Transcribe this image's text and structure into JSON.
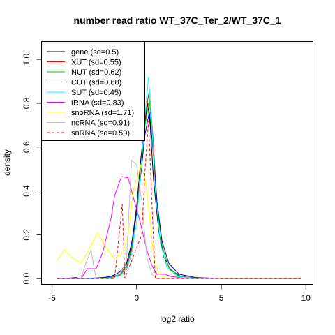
{
  "chart_data": {
    "type": "line",
    "title": "number read ratio WT_37C_Ter_2/WT_37C_1",
    "xlabel": "log2 ratio",
    "ylabel": "density",
    "xlim": [
      -5.6,
      10.4
    ],
    "ylim": [
      -0.025,
      1.08
    ],
    "xticks": [
      -5,
      0,
      5,
      10
    ],
    "xtick_labels": [
      "-5",
      "0",
      "5",
      "10"
    ],
    "yticks": [
      0,
      0.2,
      0.4,
      0.6,
      0.8,
      1.0
    ],
    "ytick_labels": [
      "0.0",
      "0.2",
      "0.4",
      "0.6",
      "0.8",
      "1.0"
    ],
    "grid": false,
    "legend_position": "top-left",
    "series": [
      {
        "name": "gene (sd=0.5)",
        "color": "#000000",
        "dash": false,
        "points": [
          [
            -4.7,
            0
          ],
          [
            -4,
            0
          ],
          [
            -3.3,
            0
          ],
          [
            -2.6,
            0
          ],
          [
            -2,
            0.003
          ],
          [
            -1.5,
            0.005
          ],
          [
            -1,
            0.02
          ],
          [
            -0.6,
            0.06
          ],
          [
            -0.3,
            0.15
          ],
          [
            0,
            0.33
          ],
          [
            0.25,
            0.55
          ],
          [
            0.5,
            0.72
          ],
          [
            0.65,
            0.8
          ],
          [
            0.8,
            0.7
          ],
          [
            1.0,
            0.45
          ],
          [
            1.3,
            0.22
          ],
          [
            1.6,
            0.1
          ],
          [
            2.0,
            0.04
          ],
          [
            2.6,
            0.01
          ],
          [
            3.5,
            0.003
          ],
          [
            5,
            0
          ],
          [
            7,
            0
          ],
          [
            9.7,
            0
          ]
        ]
      },
      {
        "name": "XUT (sd=0.55)",
        "color": "#ff0000",
        "dash": false,
        "points": [
          [
            -4.7,
            0
          ],
          [
            -4,
            0
          ],
          [
            -3.3,
            0
          ],
          [
            -2.6,
            0
          ],
          [
            -2,
            0.002
          ],
          [
            -1.5,
            0.005
          ],
          [
            -1,
            0.015
          ],
          [
            -0.6,
            0.05
          ],
          [
            -0.3,
            0.13
          ],
          [
            0,
            0.3
          ],
          [
            0.25,
            0.52
          ],
          [
            0.5,
            0.74
          ],
          [
            0.75,
            0.86
          ],
          [
            0.95,
            0.66
          ],
          [
            1.2,
            0.35
          ],
          [
            1.5,
            0.15
          ],
          [
            1.9,
            0.05
          ],
          [
            2.5,
            0.01
          ],
          [
            3.5,
            0.002
          ],
          [
            5,
            0
          ],
          [
            7,
            0
          ],
          [
            9.7,
            0
          ]
        ]
      },
      {
        "name": "NUT (sd=0.62)",
        "color": "#00cc00",
        "dash": false,
        "points": [
          [
            -4.7,
            0
          ],
          [
            -4,
            0
          ],
          [
            -3.3,
            0
          ],
          [
            -2.6,
            0
          ],
          [
            -2,
            0.003
          ],
          [
            -1.5,
            0.006
          ],
          [
            -1,
            0.02
          ],
          [
            -0.6,
            0.06
          ],
          [
            -0.3,
            0.14
          ],
          [
            0,
            0.3
          ],
          [
            0.25,
            0.5
          ],
          [
            0.5,
            0.7
          ],
          [
            0.75,
            0.82
          ],
          [
            0.95,
            0.62
          ],
          [
            1.2,
            0.33
          ],
          [
            1.5,
            0.15
          ],
          [
            1.9,
            0.05
          ],
          [
            2.5,
            0.01
          ],
          [
            3.5,
            0.002
          ],
          [
            5,
            0
          ],
          [
            7,
            0
          ],
          [
            9.7,
            0
          ]
        ]
      },
      {
        "name": "CUT (sd=0.68)",
        "color": "#0000cc",
        "dash": false,
        "points": [
          [
            -4.7,
            0
          ],
          [
            -4,
            0.002
          ],
          [
            -3.6,
            0.005
          ],
          [
            -3.3,
            0
          ],
          [
            -2.6,
            0.002
          ],
          [
            -2,
            0.005
          ],
          [
            -1.5,
            0.01
          ],
          [
            -1,
            0.03
          ],
          [
            -0.6,
            0.07
          ],
          [
            -0.3,
            0.16
          ],
          [
            0,
            0.3
          ],
          [
            0.25,
            0.48
          ],
          [
            0.5,
            0.66
          ],
          [
            0.75,
            0.76
          ],
          [
            0.95,
            0.6
          ],
          [
            1.2,
            0.35
          ],
          [
            1.5,
            0.17
          ],
          [
            1.9,
            0.07
          ],
          [
            2.5,
            0.02
          ],
          [
            3.5,
            0.005
          ],
          [
            5,
            0
          ],
          [
            7,
            0
          ],
          [
            9.7,
            0
          ]
        ]
      },
      {
        "name": "SUT (sd=0.45)",
        "color": "#00ffff",
        "dash": false,
        "points": [
          [
            -4.7,
            0
          ],
          [
            -4,
            0
          ],
          [
            -3.3,
            0
          ],
          [
            -2.6,
            0
          ],
          [
            -2,
            0
          ],
          [
            -1.5,
            0.003
          ],
          [
            -1,
            0.012
          ],
          [
            -0.6,
            0.04
          ],
          [
            -0.3,
            0.11
          ],
          [
            0,
            0.26
          ],
          [
            0.25,
            0.5
          ],
          [
            0.5,
            0.75
          ],
          [
            0.7,
            0.92
          ],
          [
            0.9,
            0.7
          ],
          [
            1.1,
            0.4
          ],
          [
            1.4,
            0.16
          ],
          [
            1.8,
            0.05
          ],
          [
            2.4,
            0.01
          ],
          [
            3.5,
            0
          ],
          [
            5,
            0
          ],
          [
            7,
            0
          ],
          [
            9.7,
            0
          ]
        ]
      },
      {
        "name": "tRNA (sd=0.83)",
        "color": "#ff00ff",
        "dash": false,
        "points": [
          [
            -4.7,
            0
          ],
          [
            -3.9,
            0
          ],
          [
            -3.3,
            0
          ],
          [
            -2.9,
            0.045
          ],
          [
            -2.4,
            0.045
          ],
          [
            -2.0,
            0.12
          ],
          [
            -1.5,
            0.28
          ],
          [
            -1.3,
            0.38
          ],
          [
            -0.9,
            0.465
          ],
          [
            -0.5,
            0.46
          ],
          [
            -0.3,
            0.4
          ],
          [
            0.2,
            0.26
          ],
          [
            0.6,
            0.13
          ],
          [
            0.9,
            0.06
          ],
          [
            1.2,
            0.02
          ],
          [
            1.7,
            0.02
          ],
          [
            2.0,
            0.01
          ],
          [
            3.0,
            0
          ],
          [
            5,
            0
          ],
          [
            7,
            0
          ],
          [
            9.7,
            0
          ]
        ]
      },
      {
        "name": "snoRNA (sd=1.71)",
        "color": "#ffff00",
        "dash": false,
        "points": [
          [
            -4.7,
            0.08
          ],
          [
            -4.3,
            0.13
          ],
          [
            -3.7,
            0.09
          ],
          [
            -3.3,
            0.07
          ],
          [
            -2.9,
            0.12
          ],
          [
            -2.3,
            0.21
          ],
          [
            -1.8,
            0.14
          ],
          [
            -1.3,
            0.09
          ],
          [
            -0.8,
            0.12
          ],
          [
            -0.5,
            0.2
          ],
          [
            -0.2,
            0.4
          ],
          [
            0.25,
            0.52
          ],
          [
            0.5,
            0.45
          ],
          [
            0.75,
            0.3
          ],
          [
            1.0,
            0.1
          ],
          [
            1.3,
            0.02
          ],
          [
            1.8,
            0
          ],
          [
            3,
            0
          ],
          [
            5,
            0
          ],
          [
            7,
            0
          ],
          [
            9.7,
            0
          ]
        ]
      },
      {
        "name": "ncRNA (sd=0.91)",
        "color": "#bebebe",
        "dash": false,
        "points": [
          [
            -4.7,
            0
          ],
          [
            -3.3,
            0
          ],
          [
            -3.0,
            0.07
          ],
          [
            -2.7,
            0.13
          ],
          [
            -2.4,
            0
          ],
          [
            -1.5,
            0
          ],
          [
            -1,
            0.02
          ],
          [
            -0.6,
            0.08
          ],
          [
            -0.3,
            0.54
          ],
          [
            0,
            0.52
          ],
          [
            0.3,
            0.35
          ],
          [
            0.6,
            0.1
          ],
          [
            0.9,
            0.02
          ],
          [
            1.2,
            0
          ],
          [
            3,
            0
          ],
          [
            5,
            0
          ],
          [
            7,
            0
          ],
          [
            9.7,
            0
          ]
        ]
      },
      {
        "name": "snRNA (sd=0.59)",
        "color": "#ff0000",
        "dash": true,
        "points": [
          [
            -4.7,
            0
          ],
          [
            -2,
            0
          ],
          [
            -1.3,
            0
          ],
          [
            -0.85,
            0.34
          ],
          [
            -0.7,
            0
          ],
          [
            0.3,
            0.2
          ],
          [
            0.5,
            0.5
          ],
          [
            0.7,
            0.72
          ],
          [
            0.9,
            0.35
          ],
          [
            1.1,
            0
          ],
          [
            3,
            0
          ],
          [
            5,
            0
          ],
          [
            7,
            0
          ],
          [
            9.7,
            0
          ]
        ]
      }
    ]
  }
}
